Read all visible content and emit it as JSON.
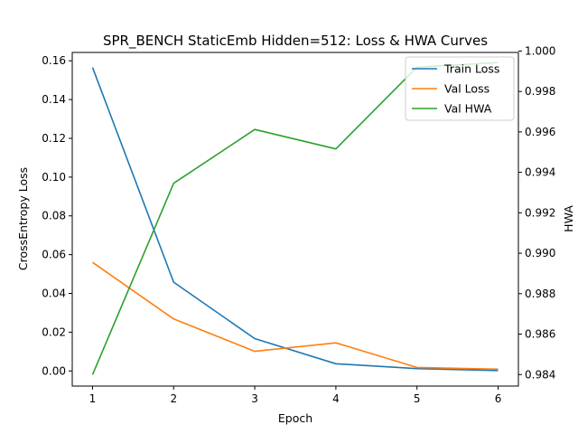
{
  "chart_data": {
    "type": "line",
    "title": "SPR_BENCH StaticEmb Hidden=512: Loss & HWA Curves",
    "xlabel": "Epoch",
    "ylabel": "CrossEntropy Loss",
    "ylabel_right": "HWA",
    "x": [
      1,
      2,
      3,
      4,
      5,
      6
    ],
    "xticks": [
      "1",
      "2",
      "3",
      "4",
      "5",
      "6"
    ],
    "xlim": [
      0.75,
      6.25
    ],
    "ylim": [
      -0.0078,
      0.1643
    ],
    "ylim_right": [
      0.98343,
      0.99993
    ],
    "yticks_left": [
      "0.00",
      "0.02",
      "0.04",
      "0.06",
      "0.08",
      "0.10",
      "0.12",
      "0.14",
      "0.16"
    ],
    "yticks_right": [
      "0.984",
      "0.986",
      "0.988",
      "0.990",
      "0.992",
      "0.994",
      "0.996",
      "0.998",
      "1.000"
    ],
    "grid": false,
    "legend_position": "top-right",
    "series": [
      {
        "name": "Train Loss",
        "axis": "left",
        "color": "#1f77b4",
        "values": [
          0.1565,
          0.0458,
          0.0167,
          0.0037,
          0.0012,
          0.0002
        ]
      },
      {
        "name": "Val Loss",
        "axis": "left",
        "color": "#ff7f0e",
        "values": [
          0.056,
          0.0268,
          0.0101,
          0.0145,
          0.0018,
          0.0009
        ]
      },
      {
        "name": "Val HWA",
        "axis": "right",
        "color": "#2ca02c",
        "values": [
          0.984,
          0.99346,
          0.99612,
          0.99516,
          0.9992,
          0.99943
        ]
      }
    ]
  }
}
